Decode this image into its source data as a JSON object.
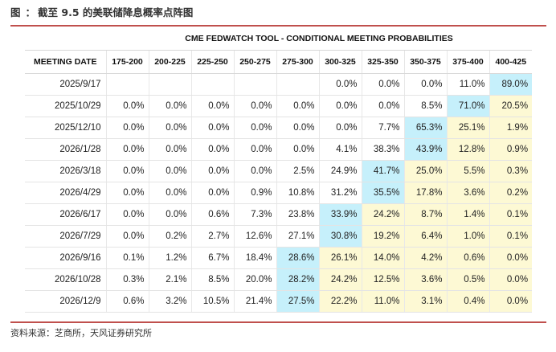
{
  "figure": {
    "tag": "图",
    "colon": "：",
    "title": "截至 9.5 的美联储降息概率点阵图"
  },
  "table": {
    "banner": "CME FEDWATCH TOOL - CONDITIONAL MEETING PROBABILITIES",
    "date_header": "MEETING DATE",
    "columns": [
      "175-200",
      "200-225",
      "225-250",
      "250-275",
      "275-300",
      "300-325",
      "325-350",
      "350-375",
      "375-400",
      "400-425"
    ],
    "rows": [
      {
        "date": "2025/9/17",
        "values": [
          "",
          "",
          "",
          "",
          "",
          "0.0%",
          "0.0%",
          "0.0%",
          "11.0%",
          "89.0%"
        ]
      },
      {
        "date": "2025/10/29",
        "values": [
          "0.0%",
          "0.0%",
          "0.0%",
          "0.0%",
          "0.0%",
          "0.0%",
          "0.0%",
          "8.5%",
          "71.0%",
          "20.5%"
        ]
      },
      {
        "date": "2025/12/10",
        "values": [
          "0.0%",
          "0.0%",
          "0.0%",
          "0.0%",
          "0.0%",
          "0.0%",
          "7.7%",
          "65.3%",
          "25.1%",
          "1.9%"
        ]
      },
      {
        "date": "2026/1/28",
        "values": [
          "0.0%",
          "0.0%",
          "0.0%",
          "0.0%",
          "0.0%",
          "4.1%",
          "38.3%",
          "43.9%",
          "12.8%",
          "0.9%"
        ]
      },
      {
        "date": "2026/3/18",
        "values": [
          "0.0%",
          "0.0%",
          "0.0%",
          "0.0%",
          "2.5%",
          "24.9%",
          "41.7%",
          "25.0%",
          "5.5%",
          "0.3%"
        ]
      },
      {
        "date": "2026/4/29",
        "values": [
          "0.0%",
          "0.0%",
          "0.0%",
          "0.9%",
          "10.8%",
          "31.2%",
          "35.5%",
          "17.8%",
          "3.6%",
          "0.2%"
        ]
      },
      {
        "date": "2026/6/17",
        "values": [
          "0.0%",
          "0.0%",
          "0.6%",
          "7.3%",
          "23.8%",
          "33.9%",
          "24.2%",
          "8.7%",
          "1.4%",
          "0.1%"
        ]
      },
      {
        "date": "2026/7/29",
        "values": [
          "0.0%",
          "0.2%",
          "2.7%",
          "12.6%",
          "27.1%",
          "30.8%",
          "19.2%",
          "6.4%",
          "1.0%",
          "0.1%"
        ]
      },
      {
        "date": "2026/9/16",
        "values": [
          "0.1%",
          "1.2%",
          "6.7%",
          "18.4%",
          "28.6%",
          "26.1%",
          "14.0%",
          "4.2%",
          "0.6%",
          "0.0%"
        ]
      },
      {
        "date": "2026/10/28",
        "values": [
          "0.3%",
          "2.1%",
          "8.5%",
          "20.0%",
          "28.2%",
          "24.2%",
          "12.5%",
          "3.6%",
          "0.5%",
          "0.0%"
        ]
      },
      {
        "date": "2026/12/9",
        "values": [
          "0.6%",
          "3.2%",
          "10.5%",
          "21.4%",
          "27.5%",
          "22.2%",
          "11.0%",
          "3.1%",
          "0.4%",
          "0.0%"
        ]
      }
    ],
    "highlight_max_color": "#c6f0fb",
    "highlight_right_color": "#fdf9d4"
  },
  "source": "资料来源：芝商所，天风证券研究所"
}
